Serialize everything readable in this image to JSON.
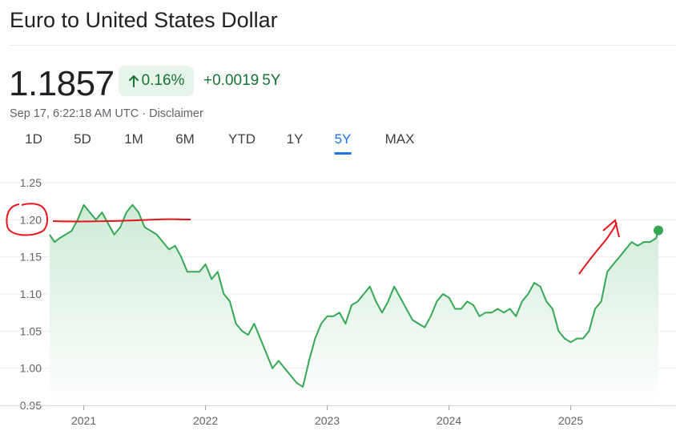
{
  "header": {
    "title": "Euro to United States Dollar",
    "price": "1.1857",
    "change_percent": "0.16%",
    "change_abs": "+0.0019",
    "change_period": "5Y",
    "timestamp": "Sep 17, 6:22:18 AM UTC",
    "separator": "·",
    "disclaimer": "Disclaimer"
  },
  "tabs": [
    {
      "label": "1D",
      "active": false
    },
    {
      "label": "5D",
      "active": false
    },
    {
      "label": "1M",
      "active": false
    },
    {
      "label": "6M",
      "active": false
    },
    {
      "label": "YTD",
      "active": false
    },
    {
      "label": "1Y",
      "active": false
    },
    {
      "label": "5Y",
      "active": true
    },
    {
      "label": "MAX",
      "active": false
    }
  ],
  "colors": {
    "line": "#34a853",
    "fill_top": "#ceead6",
    "up_text": "#137333",
    "up_badge_bg": "#e6f4ea",
    "active_tab": "#1a73e8",
    "annotation": "#e8141c",
    "grid": "#ebebeb"
  },
  "chart_data": {
    "type": "area",
    "ylim": [
      0.95,
      1.25
    ],
    "xlim": [
      2020.72,
      2025.72
    ],
    "y_ticks": [
      0.95,
      1.0,
      1.05,
      1.1,
      1.15,
      1.2,
      1.25
    ],
    "y_tick_labels": [
      "0.95",
      "1.00",
      "1.05",
      "1.10",
      "1.15",
      "1.20",
      "1.25"
    ],
    "x_ticks": [
      2021,
      2022,
      2023,
      2024,
      2025
    ],
    "x_tick_labels": [
      "2021",
      "2022",
      "2023",
      "2024",
      "2025"
    ],
    "grid": "horizontal",
    "series": [
      {
        "x": [
          2020.72,
          2020.76,
          2020.8,
          2020.85,
          2020.9,
          2020.95,
          2021.0,
          2021.05,
          2021.1,
          2021.15,
          2021.2,
          2021.25,
          2021.3,
          2021.35,
          2021.4,
          2021.45,
          2021.5,
          2021.55,
          2021.6,
          2021.65,
          2021.7,
          2021.75,
          2021.8,
          2021.85,
          2021.9,
          2021.95,
          2022.0,
          2022.05,
          2022.1,
          2022.15,
          2022.2,
          2022.25,
          2022.3,
          2022.35,
          2022.4,
          2022.45,
          2022.5,
          2022.55,
          2022.6,
          2022.65,
          2022.7,
          2022.75,
          2022.8,
          2022.85,
          2022.9,
          2022.95,
          2023.0,
          2023.05,
          2023.1,
          2023.15,
          2023.2,
          2023.25,
          2023.3,
          2023.35,
          2023.4,
          2023.45,
          2023.5,
          2023.55,
          2023.6,
          2023.65,
          2023.7,
          2023.75,
          2023.8,
          2023.85,
          2023.9,
          2023.95,
          2024.0,
          2024.05,
          2024.1,
          2024.15,
          2024.2,
          2024.25,
          2024.3,
          2024.35,
          2024.4,
          2024.45,
          2024.5,
          2024.55,
          2024.6,
          2024.65,
          2024.7,
          2024.75,
          2024.8,
          2024.85,
          2024.9,
          2024.95,
          2025.0,
          2025.05,
          2025.1,
          2025.15,
          2025.2,
          2025.25,
          2025.3,
          2025.35,
          2025.4,
          2025.45,
          2025.5,
          2025.55,
          2025.6,
          2025.65,
          2025.7
        ],
        "y": [
          1.18,
          1.17,
          1.175,
          1.18,
          1.185,
          1.2,
          1.22,
          1.21,
          1.2,
          1.21,
          1.195,
          1.18,
          1.19,
          1.21,
          1.22,
          1.21,
          1.19,
          1.185,
          1.18,
          1.17,
          1.16,
          1.165,
          1.15,
          1.13,
          1.13,
          1.13,
          1.14,
          1.12,
          1.13,
          1.1,
          1.09,
          1.06,
          1.05,
          1.045,
          1.06,
          1.04,
          1.02,
          1.0,
          1.01,
          1.0,
          0.99,
          0.98,
          0.975,
          1.01,
          1.04,
          1.06,
          1.07,
          1.07,
          1.075,
          1.06,
          1.085,
          1.09,
          1.1,
          1.11,
          1.09,
          1.075,
          1.09,
          1.11,
          1.095,
          1.08,
          1.065,
          1.06,
          1.055,
          1.07,
          1.09,
          1.1,
          1.095,
          1.08,
          1.08,
          1.09,
          1.085,
          1.07,
          1.075,
          1.075,
          1.08,
          1.075,
          1.08,
          1.07,
          1.09,
          1.1,
          1.115,
          1.11,
          1.09,
          1.08,
          1.05,
          1.04,
          1.035,
          1.04,
          1.04,
          1.05,
          1.08,
          1.09,
          1.13,
          1.14,
          1.15,
          1.16,
          1.17,
          1.165,
          1.17,
          1.17,
          1.175
        ]
      }
    ],
    "last_point": {
      "x": 2025.72,
      "y": 1.1857
    }
  }
}
